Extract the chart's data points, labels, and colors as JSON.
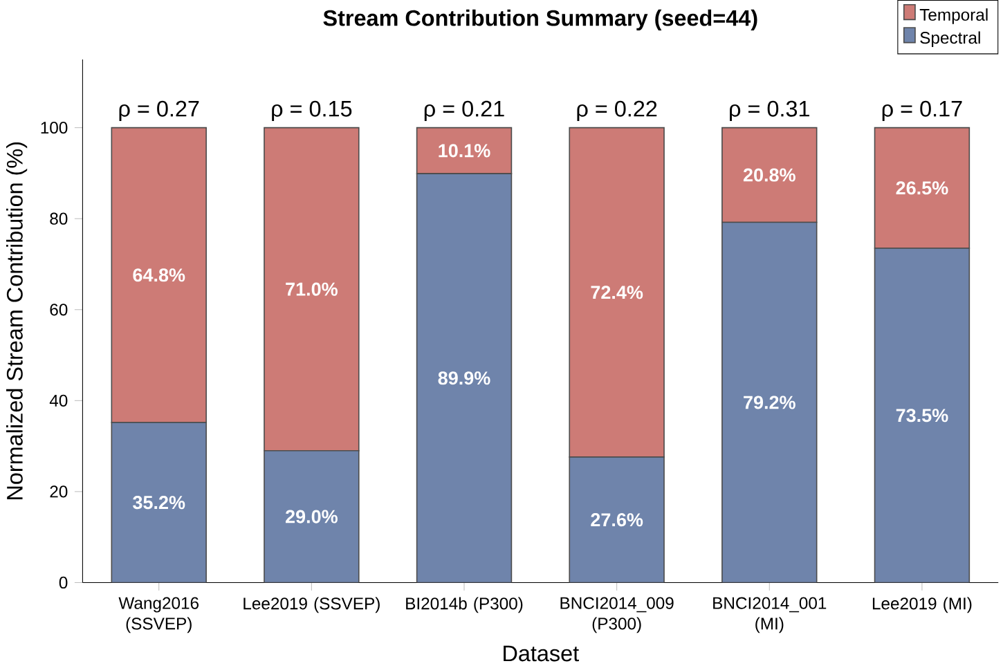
{
  "chart_data": {
    "type": "bar",
    "stacked": true,
    "title": "Stream Contribution Summary (seed=44)",
    "xlabel": "Dataset",
    "ylabel": "Normalized Stream Contribution (%)",
    "categories": [
      "Wang2016 (SSVEP)",
      "Lee2019 (SSVEP)",
      "BI2014b (P300)",
      "BNCI2014_009 (P300)",
      "BNCI2014_001 (MI)",
      "Lee2019 (MI)"
    ],
    "series": [
      {
        "name": "Spectral",
        "color": "#6f84ab",
        "values": [
          35.2,
          29.0,
          89.9,
          27.6,
          79.2,
          73.5
        ],
        "value_labels": [
          "35.2%",
          "29.0%",
          "89.9%",
          "27.6%",
          "79.2%",
          "73.5%"
        ]
      },
      {
        "name": "Temporal",
        "color": "#cd7b76",
        "values": [
          64.8,
          71.0,
          10.1,
          72.4,
          20.8,
          26.5
        ],
        "value_labels": [
          "64.8%",
          "71.0%",
          "10.1%",
          "72.4%",
          "20.8%",
          "26.5%"
        ]
      }
    ],
    "annotations": [
      {
        "text": "ρ = 0.27",
        "x": "Wang2016 (SSVEP)",
        "y": 100
      },
      {
        "text": "ρ = 0.15",
        "x": "Lee2019 (SSVEP)",
        "y": 100
      },
      {
        "text": "ρ = 0.21",
        "x": "BI2014b (P300)",
        "y": 100
      },
      {
        "text": "ρ = 0.22",
        "x": "BNCI2014_009 (P300)",
        "y": 100
      },
      {
        "text": "ρ = 0.31",
        "x": "BNCI2014_001 (MI)",
        "y": 100
      },
      {
        "text": "ρ = 0.17",
        "x": "Lee2019 (MI)",
        "y": 100
      }
    ],
    "ylim": [
      0,
      115
    ],
    "yticks": [
      0,
      20,
      40,
      60,
      80,
      100
    ],
    "grid": false,
    "legend": "top right"
  }
}
